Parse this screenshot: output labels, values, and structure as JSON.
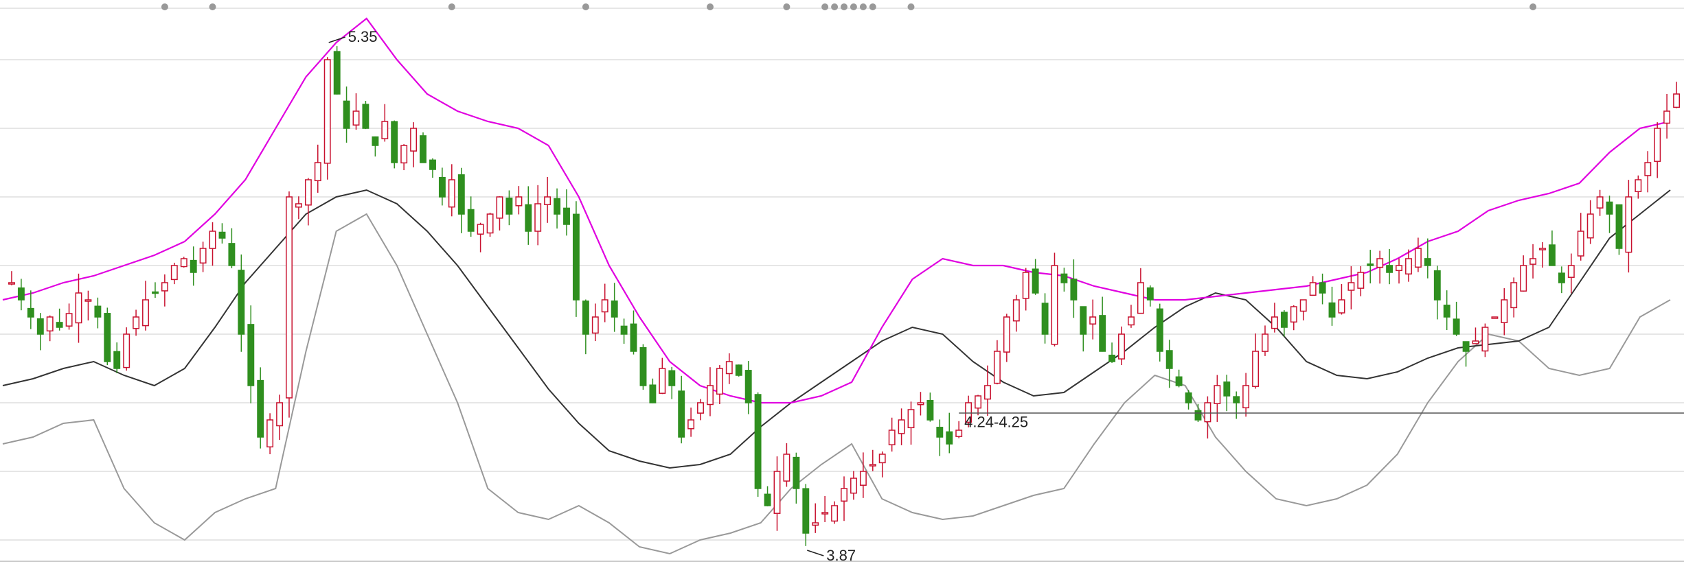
{
  "chart_data": {
    "type": "candlestick",
    "title": "",
    "xlabel": "",
    "ylabel": "",
    "ylim": [
      3.85,
      5.45
    ],
    "grid": true,
    "gridlines_y": [
      3.9,
      4.1,
      4.3,
      4.5,
      4.7,
      4.9,
      5.1,
      5.3,
      5.45
    ],
    "colors": {
      "up": "#c8102e",
      "down": "#2f8f1f",
      "upper_band": "#e000e0",
      "middle_band": "#333333",
      "lower_band": "#999999",
      "grid": "#dddddd",
      "marker_dots": "#999999",
      "support_line": "#555555"
    },
    "candles_close": [
      4.65,
      4.6,
      4.55,
      4.5,
      4.55,
      4.52,
      4.56,
      4.62,
      4.6,
      4.55,
      4.42,
      4.4,
      4.5,
      4.55,
      4.6,
      4.62,
      4.65,
      4.7,
      4.72,
      4.68,
      4.75,
      4.8,
      4.78,
      4.7,
      4.5,
      4.35,
      4.2,
      4.25,
      4.3,
      4.9,
      4.88,
      4.95,
      5.0,
      5.3,
      5.2,
      5.1,
      5.15,
      5.1,
      5.05,
      5.12,
      5.0,
      5.05,
      5.1,
      5.0,
      4.98,
      4.9,
      4.95,
      4.85,
      4.8,
      4.82,
      4.85,
      4.9,
      4.85,
      4.9,
      4.8,
      4.88,
      4.9,
      4.85,
      4.82,
      4.6,
      4.5,
      4.55,
      4.6,
      4.55,
      4.5,
      4.45,
      4.35,
      4.3,
      4.4,
      4.35,
      4.2,
      4.25,
      4.3,
      4.35,
      4.4,
      4.42,
      4.38,
      4.3,
      4.05,
      4.0,
      4.1,
      4.15,
      4.05,
      3.92,
      3.95,
      3.98,
      4.0,
      4.05,
      4.08,
      4.1,
      4.12,
      4.15,
      4.22,
      4.25,
      4.28,
      4.3,
      4.25,
      4.2,
      4.18,
      4.22,
      4.3,
      4.32,
      4.35,
      4.45,
      4.55,
      4.6,
      4.68,
      4.62,
      4.5,
      4.7,
      4.65,
      4.6,
      4.5,
      4.55,
      4.45,
      4.42,
      4.5,
      4.55,
      4.65,
      4.6,
      4.45,
      4.4,
      4.35,
      4.3,
      4.25,
      4.3,
      4.35,
      4.32,
      4.3,
      4.35,
      4.45,
      4.5,
      4.55,
      4.52,
      4.58,
      4.6,
      4.65,
      4.62,
      4.55,
      4.6,
      4.65,
      4.68,
      4.7,
      4.72,
      4.68,
      4.7,
      4.72,
      4.75,
      4.7,
      4.6,
      4.55,
      4.5,
      4.45,
      4.48,
      4.52,
      4.55,
      4.6,
      4.65,
      4.7,
      4.72,
      4.75,
      4.7,
      4.65,
      4.7,
      4.8,
      4.85,
      4.9,
      4.85,
      4.75,
      4.9,
      4.95,
      5.0,
      5.1,
      5.15,
      5.2
    ],
    "upper_band_series": [
      4.6,
      4.62,
      4.65,
      4.67,
      4.7,
      4.73,
      4.77,
      4.85,
      4.95,
      5.1,
      5.25,
      5.35,
      5.42,
      5.3,
      5.2,
      5.15,
      5.12,
      5.1,
      5.05,
      4.9,
      4.7,
      4.55,
      4.42,
      4.35,
      4.32,
      4.3,
      4.3,
      4.32,
      4.36,
      4.52,
      4.66,
      4.72,
      4.7,
      4.7,
      4.68,
      4.67,
      4.64,
      4.62,
      4.6,
      4.6,
      4.61,
      4.62,
      4.63,
      4.64,
      4.66,
      4.68,
      4.72,
      4.77,
      4.8,
      4.86,
      4.89,
      4.91,
      4.94,
      5.03,
      5.1,
      5.12
    ],
    "middle_band_series": [
      4.35,
      4.37,
      4.4,
      4.42,
      4.38,
      4.35,
      4.4,
      4.52,
      4.65,
      4.75,
      4.85,
      4.9,
      4.92,
      4.88,
      4.8,
      4.7,
      4.58,
      4.46,
      4.34,
      4.24,
      4.16,
      4.13,
      4.11,
      4.12,
      4.15,
      4.23,
      4.3,
      4.36,
      4.42,
      4.48,
      4.52,
      4.5,
      4.42,
      4.36,
      4.32,
      4.33,
      4.39,
      4.45,
      4.52,
      4.58,
      4.62,
      4.6,
      4.52,
      4.42,
      4.38,
      4.37,
      4.39,
      4.43,
      4.46,
      4.47,
      4.48,
      4.52,
      4.65,
      4.78,
      4.85,
      4.92
    ],
    "lower_band_series": [
      4.18,
      4.2,
      4.24,
      4.25,
      4.05,
      3.95,
      3.9,
      3.98,
      4.02,
      4.05,
      4.45,
      4.8,
      4.85,
      4.7,
      4.5,
      4.3,
      4.05,
      3.98,
      3.96,
      4.0,
      3.95,
      3.88,
      3.86,
      3.9,
      3.92,
      3.95,
      4.05,
      4.12,
      4.18,
      4.02,
      3.98,
      3.96,
      3.97,
      4.0,
      4.03,
      4.05,
      4.18,
      4.3,
      4.38,
      4.35,
      4.2,
      4.1,
      4.02,
      4.0,
      4.02,
      4.06,
      4.15,
      4.3,
      4.42,
      4.5,
      4.48,
      4.4,
      4.38,
      4.4,
      4.55,
      4.6
    ],
    "support_line": {
      "value": 4.27,
      "from_index": 99
    },
    "annotations": [
      {
        "text": "5.35",
        "index": 33,
        "value": 5.35
      },
      {
        "text": "3.87",
        "index": 83,
        "value": 3.87
      },
      {
        "text": "4.24-4.25",
        "index": 99,
        "value": 4.245
      }
    ],
    "event_marker_indices": [
      16,
      21,
      46,
      60,
      73,
      81,
      85,
      86,
      87,
      88,
      89,
      90,
      94,
      159,
      209,
      212,
      228
    ]
  }
}
